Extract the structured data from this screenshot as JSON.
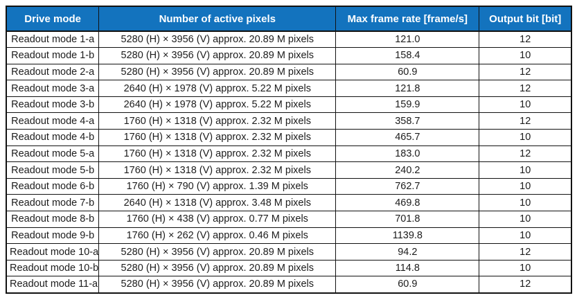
{
  "colors": {
    "header_bg": "#1373be",
    "header_text": "#ffffff",
    "border_color": "#111111",
    "cell_text": "#1c1c1c",
    "page_bg": "#ffffff"
  },
  "table": {
    "headers": {
      "drive_mode": "Drive mode",
      "active_pixels": "Number of active pixels",
      "max_frame_rate": "Max frame rate [frame/s]",
      "output_bit": "Output bit [bit]"
    },
    "rows": [
      {
        "mode": "Readout mode 1-a",
        "pixels": "5280 (H) × 3956 (V) approx. 20.89 M pixels",
        "rate": "121.0",
        "bit": "12"
      },
      {
        "mode": "Readout mode 1-b",
        "pixels": "5280 (H) × 3956 (V) approx. 20.89 M pixels",
        "rate": "158.4",
        "bit": "10"
      },
      {
        "mode": "Readout mode 2-a",
        "pixels": "5280 (H) × 3956 (V) approx. 20.89 M pixels",
        "rate": "60.9",
        "bit": "12"
      },
      {
        "mode": "Readout mode 3-a",
        "pixels": "2640 (H) × 1978 (V) approx. 5.22 M pixels",
        "rate": "121.8",
        "bit": "12"
      },
      {
        "mode": "Readout mode 3-b",
        "pixels": "2640 (H) × 1978 (V) approx. 5.22 M pixels",
        "rate": "159.9",
        "bit": "10"
      },
      {
        "mode": "Readout mode 4-a",
        "pixels": "1760 (H) × 1318 (V) approx. 2.32 M pixels",
        "rate": "358.7",
        "bit": "12"
      },
      {
        "mode": "Readout mode 4-b",
        "pixels": "1760 (H) × 1318 (V) approx. 2.32 M pixels",
        "rate": "465.7",
        "bit": "10"
      },
      {
        "mode": "Readout mode 5-a",
        "pixels": "1760 (H) × 1318 (V) approx. 2.32 M pixels",
        "rate": "183.0",
        "bit": "12"
      },
      {
        "mode": "Readout mode 5-b",
        "pixels": "1760 (H) × 1318 (V) approx. 2.32 M pixels",
        "rate": "240.2",
        "bit": "10"
      },
      {
        "mode": "Readout mode 6-b",
        "pixels": "1760 (H) × 790 (V) approx. 1.39 M pixels",
        "rate": "762.7",
        "bit": "10"
      },
      {
        "mode": "Readout mode 7-b",
        "pixels": "2640 (H) × 1318 (V) approx. 3.48 M pixels",
        "rate": "469.8",
        "bit": "10"
      },
      {
        "mode": "Readout mode 8-b",
        "pixels": "1760 (H) × 438 (V) approx. 0.77 M pixels",
        "rate": "701.8",
        "bit": "10"
      },
      {
        "mode": "Readout mode 9-b",
        "pixels": "1760 (H) × 262 (V) approx. 0.46 M pixels",
        "rate": "1139.8",
        "bit": "10"
      },
      {
        "mode": "Readout mode 10-a",
        "pixels": "5280 (H) × 3956 (V) approx. 20.89 M pixels",
        "rate": "94.2",
        "bit": "12"
      },
      {
        "mode": "Readout mode 10-b",
        "pixels": "5280 (H) × 3956 (V) approx. 20.89 M pixels",
        "rate": "114.8",
        "bit": "10"
      },
      {
        "mode": "Readout mode 11-a",
        "pixels": "5280 (H) × 3956 (V) approx. 20.89 M pixels",
        "rate": "60.9",
        "bit": "12"
      }
    ]
  }
}
